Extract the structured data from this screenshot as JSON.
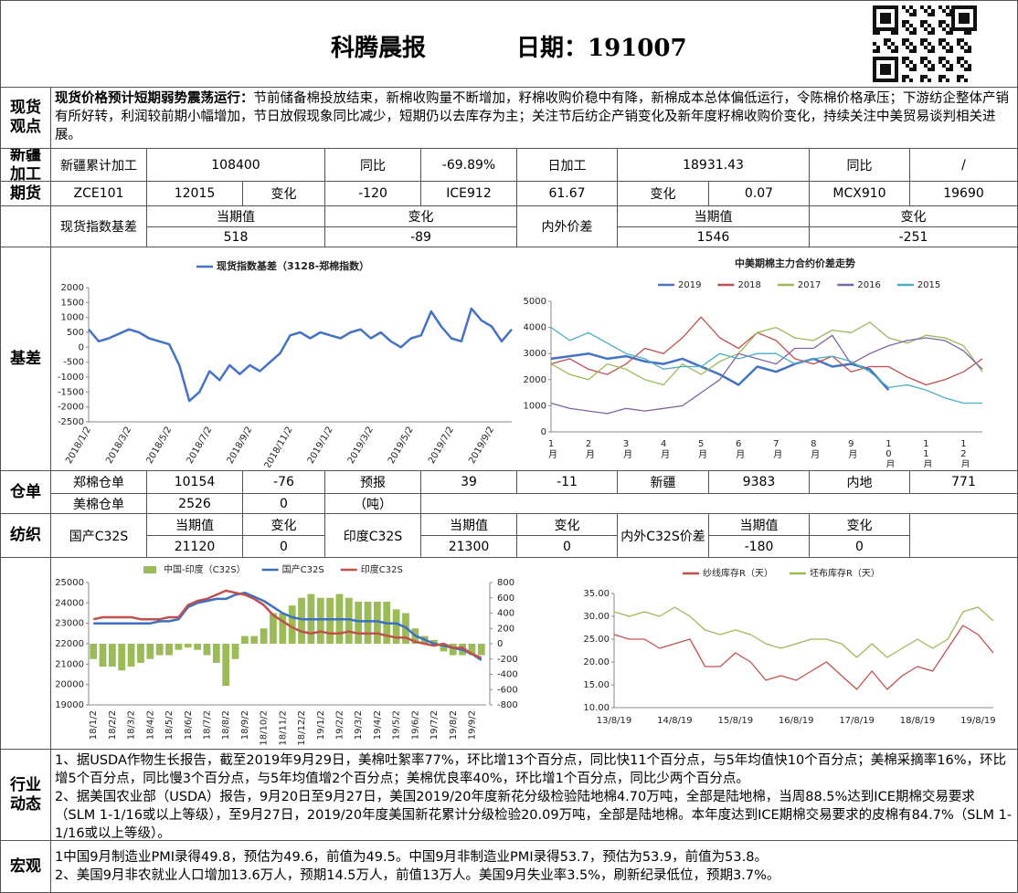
{
  "header": {
    "title": "科腾晨报",
    "date": "日期：191007"
  },
  "labels": {
    "spot": "现货观点",
    "xinjiang": "新疆加工",
    "futures": "期货",
    "basis": "基差",
    "warrant": "仓单",
    "textile": "纺织",
    "industry": "行业动态",
    "macro": "宏观"
  },
  "spot_view": {
    "heading": "现货价格预计短期弱势震荡运行：",
    "body": "节前储备棉投放结束，新棉收购量不断增加，籽棉收购价稳中有降，新棉成本总体偏低运行，令陈棉价格承压；下游纺企整体产销有所好转，利润较前期小幅增加，节日放假现象同比减少，短期仍以去库存为主；关注节后纺企产销变化及新年度籽棉收购价变化，持续关注中美贸易谈判相关进展。"
  },
  "table": {
    "rows": [
      [
        "新疆累计加工",
        "108400",
        "同比",
        "-69.89%",
        "日加工",
        "18931.43",
        "同比",
        "/"
      ],
      [
        "ZCE101",
        "12015",
        "变化",
        "-120",
        "ICE912",
        "61.67",
        "变化",
        "0.07",
        "MCX910",
        "19690"
      ],
      [
        "现货指数基差",
        "当期值",
        "变化",
        "内外价差",
        "当期值",
        "变化"
      ],
      [
        "518",
        "-89",
        "1546",
        "-251"
      ],
      [
        "郑棉仓单",
        "10154",
        "-76",
        "预报",
        "39",
        "-11",
        "新疆",
        "9383",
        "内地",
        "771"
      ],
      [
        "美棉仓单",
        "2526",
        "0",
        "（吨）"
      ],
      [
        "国产C32S",
        "当期值",
        "变化",
        "印度C32S",
        "当期值",
        "变化",
        "内外C32S价差",
        "当期值",
        "变化"
      ],
      [
        "21120",
        "0",
        "21300",
        "0",
        "-180",
        "0"
      ]
    ]
  },
  "industry": [
    "1、据USDA作物生长报告，截至2019年9月29日，美棉吐絮率77%，环比增13个百分点，同比快11个百分点，与5年均值快10个百分点；美棉采摘率16%，环比增5个百分点，同比慢3个百分点，与5年均值增2个百分点；美棉优良率40%，环比增1个百分点，同比少两个百分点。",
    "2、据美国农业部（USDA）报告，9月20日至9月27日，美国2019/20年度新花分级检验陆地棉4.70万吨，全部是陆地棉，当周88.5%达到ICE期棉交易要求（SLM 1-1/16或以上等级），至9月27日，2019/20年度美国新花累计分级检验20.09万吨，全部是陆地棉。本年度达到ICE期棉交易要求的皮棉有84.7%（SLM 1-1/16或以上等级）。"
  ],
  "macro": [
    "1中国9月制造业PMI录得49.8，预估为49.6，前值为49.5。中国9月非制造业PMI录得53.7，预估为53.9，前值为53.8。",
    "2、美国9月非农就业人口增加13.6万人，预期14.5万人，前值13万人。美国9月失业率3.5%，刷新纪录低位，预期3.7%。"
  ],
  "chart_data": [
    {
      "type": "line",
      "legend": "top",
      "categories": [
        "2018/1/2",
        null,
        null,
        null,
        "2018/3/2",
        null,
        null,
        null,
        "2018/5/2",
        null,
        null,
        null,
        "2018/7/2",
        null,
        null,
        null,
        "2018/9/2",
        null,
        null,
        null,
        "2018/11/2",
        null,
        null,
        null,
        "2019/1/2",
        null,
        null,
        null,
        "2019/3/2",
        null,
        null,
        null,
        "2019/5/2",
        null,
        null,
        null,
        "2019/7/2",
        null,
        null,
        null,
        "2019/9/2",
        null,
        null
      ],
      "series": [
        {
          "name": "现货指数基差（3128-郑棉指数）",
          "color": "#4472c4",
          "values": [
            600,
            200,
            300,
            450,
            600,
            500,
            300,
            200,
            100,
            -600,
            -1800,
            -1500,
            -800,
            -1100,
            -600,
            -900,
            -600,
            -800,
            -500,
            -200,
            400,
            500,
            300,
            500,
            400,
            300,
            500,
            600,
            300,
            500,
            200,
            0,
            300,
            400,
            1200,
            700,
            300,
            200,
            1300,
            900,
            700,
            200,
            600
          ]
        }
      ],
      "ylim": [
        -2500,
        2000
      ],
      "yticks": [
        2000,
        1500,
        1000,
        500,
        0,
        -500,
        -1000,
        -1500,
        -2000,
        -2500
      ]
    },
    {
      "type": "line",
      "title": "中美期棉主力合约价差走势",
      "legend": "top",
      "categories": [
        "1月",
        null,
        "2月",
        null,
        "3月",
        null,
        "4月",
        null,
        "5月",
        null,
        "6月",
        null,
        "7月",
        null,
        "8月",
        null,
        "9月",
        null,
        "10月",
        null,
        "11月",
        null,
        "12月",
        null
      ],
      "series": [
        {
          "name": "2019",
          "color": "#4472c4",
          "values": [
            2800,
            2900,
            3000,
            2800,
            2900,
            2700,
            2600,
            2800,
            2500,
            2200,
            1800,
            2500,
            2300,
            2600,
            2800,
            2500,
            2600,
            2400,
            1600,
            null,
            null,
            null,
            null,
            null
          ]
        },
        {
          "name": "2018",
          "color": "#c0504d",
          "values": [
            2600,
            2800,
            2400,
            2200,
            2600,
            3200,
            3000,
            3600,
            4400,
            3600,
            3200,
            3800,
            3500,
            2800,
            2600,
            2900,
            2300,
            2500,
            2500,
            2100,
            1800,
            2000,
            2300,
            2800
          ]
        },
        {
          "name": "2017",
          "color": "#9bbb59",
          "values": [
            2600,
            2200,
            2000,
            2600,
            2400,
            2000,
            1800,
            2600,
            2200,
            2700,
            3000,
            3800,
            4000,
            3600,
            3500,
            3900,
            3800,
            4200,
            3600,
            3400,
            3700,
            3600,
            3300,
            2300
          ]
        },
        {
          "name": "2016",
          "color": "#8064a2",
          "values": [
            1100,
            900,
            800,
            700,
            900,
            800,
            900,
            1000,
            1500,
            2000,
            3000,
            2800,
            2600,
            3200,
            3200,
            3700,
            2600,
            3000,
            3300,
            3500,
            3600,
            3500,
            3100,
            2400
          ]
        },
        {
          "name": "2015",
          "color": "#4bacc6",
          "values": [
            4000,
            3500,
            3800,
            3400,
            3000,
            2800,
            2400,
            2500,
            2500,
            3000,
            2800,
            3000,
            3000,
            2600,
            2800,
            2900,
            2700,
            2300,
            1700,
            1800,
            1600,
            1300,
            1100,
            1100
          ]
        }
      ],
      "ylim": [
        0,
        5000
      ],
      "yticks": [
        0,
        1000,
        2000,
        3000,
        4000,
        5000
      ]
    },
    {
      "type": "combo",
      "legend": "top",
      "categories": [
        "18/1/2",
        null,
        "18/2/2",
        null,
        "18/3/2",
        null,
        "18/4/2",
        null,
        "18/5/2",
        null,
        "18/6/2",
        null,
        "18/7/2",
        null,
        "18/8/2",
        null,
        "18/9/2",
        null,
        "18/10/2",
        null,
        "18/11/2",
        null,
        "18/12/2",
        null,
        "19/1/2",
        null,
        "19/2/2",
        null,
        "19/3/2",
        null,
        "19/4/2",
        null,
        "19/5/2",
        null,
        "19/6/2",
        null,
        "19/7/2",
        null,
        "19/8/2",
        null,
        "19/9/2",
        null
      ],
      "series": [
        {
          "name": "中国-印度（C32S）",
          "type": "bar",
          "axis": "y2",
          "color": "#9bbb59",
          "values": [
            -200,
            -300,
            -300,
            -350,
            -300,
            -250,
            -200,
            -150,
            -150,
            -80,
            -50,
            -80,
            -150,
            -250,
            -550,
            -200,
            100,
            100,
            200,
            400,
            400,
            500,
            600,
            650,
            600,
            600,
            650,
            600,
            550,
            550,
            550,
            550,
            450,
            400,
            200,
            100,
            50,
            -100,
            -150,
            -150,
            -150,
            -150
          ]
        },
        {
          "name": "国产C32S",
          "type": "line",
          "color": "#3a6fc4",
          "values": [
            23000,
            23000,
            23000,
            23000,
            23000,
            23000,
            23000,
            23100,
            23100,
            23200,
            23800,
            24000,
            24100,
            24200,
            24200,
            24400,
            24500,
            24300,
            24100,
            23800,
            23500,
            23300,
            23200,
            23200,
            23200,
            23200,
            23200,
            23200,
            23100,
            23100,
            23100,
            23000,
            23000,
            22800,
            22400,
            22200,
            22000,
            21900,
            21800,
            21700,
            21500,
            21200
          ]
        },
        {
          "name": "印度C32S",
          "type": "line",
          "color": "#c0504d",
          "values": [
            23200,
            23300,
            23300,
            23300,
            23300,
            23200,
            23200,
            23200,
            23300,
            23300,
            23900,
            24100,
            24200,
            24400,
            24600,
            24500,
            24400,
            24200,
            23900,
            23400,
            23100,
            22800,
            22600,
            22500,
            22600,
            22500,
            22500,
            22600,
            22500,
            22500,
            22500,
            22400,
            22300,
            22300,
            22100,
            22000,
            21900,
            22000,
            21800,
            21800,
            21500,
            21300
          ]
        }
      ],
      "ylim": [
        19000,
        25000
      ],
      "yticks": [
        19000,
        20000,
        21000,
        22000,
        23000,
        24000,
        25000
      ],
      "y2lim": [
        -800,
        800
      ],
      "y2ticks": [
        -800,
        -600,
        -400,
        -200,
        0,
        200,
        400,
        600,
        800
      ]
    },
    {
      "type": "line",
      "legend": "top",
      "categories": [
        "13/8/19",
        null,
        null,
        null,
        "14/8/19",
        null,
        null,
        null,
        "15/8/19",
        null,
        null,
        null,
        "16/8/19",
        null,
        null,
        null,
        "17/8/19",
        null,
        null,
        null,
        "18/8/19",
        null,
        null,
        null,
        "19/8/19",
        null
      ],
      "series": [
        {
          "name": "纱线库存R（天）",
          "color": "#c0504d",
          "values": [
            26,
            25,
            25,
            23,
            24,
            25,
            19,
            19,
            22,
            20,
            16,
            17,
            16,
            18,
            20,
            17,
            14,
            18,
            14,
            17,
            19,
            18,
            23,
            28,
            26,
            22
          ]
        },
        {
          "name": "坯布库存R（天）",
          "color": "#9bbb59",
          "values": [
            31,
            30,
            31,
            30,
            32,
            30,
            27,
            26,
            27,
            26,
            24,
            23,
            24,
            25,
            25,
            24,
            21,
            24,
            21,
            23,
            25,
            23,
            25,
            31,
            32,
            29
          ]
        }
      ],
      "ylim": [
        10,
        35
      ],
      "yticks": [
        {
          "value": 10,
          "label": "10.00"
        },
        {
          "value": 15,
          "label": "15.00"
        },
        {
          "value": 20,
          "label": "20.00"
        },
        {
          "value": 25,
          "label": "25.00"
        },
        {
          "value": 30,
          "label": "30.00"
        },
        {
          "value": 35,
          "label": "35.00"
        }
      ]
    }
  ]
}
